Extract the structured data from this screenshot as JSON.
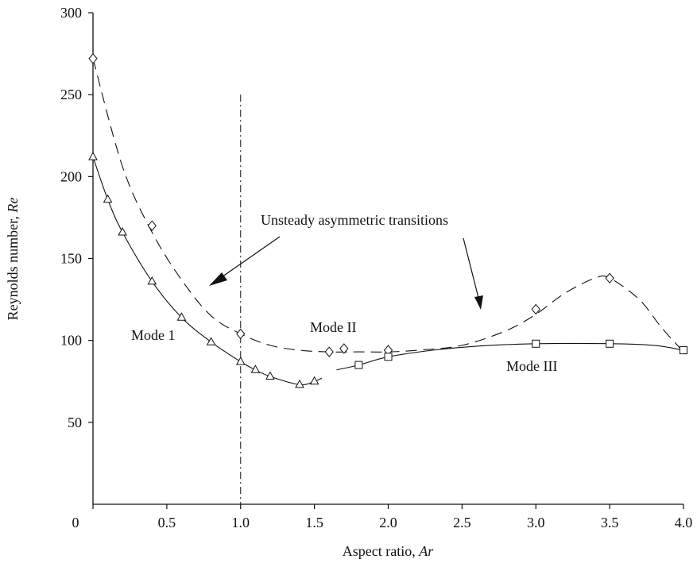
{
  "chart_data": {
    "type": "line",
    "xlabel": "Aspect ratio, ",
    "xlabel_italic": "Ar",
    "ylabel": "Reynolds number, ",
    "ylabel_italic": "Re",
    "xlim": [
      0,
      4.0
    ],
    "ylim": [
      0,
      300
    ],
    "x_ticks": [
      {
        "value": 0,
        "label": "0"
      },
      {
        "value": 0.5,
        "label": "0.5"
      },
      {
        "value": 1.0,
        "label": "1.0"
      },
      {
        "value": 1.5,
        "label": "1.5"
      },
      {
        "value": 2.0,
        "label": "2.0"
      },
      {
        "value": 2.5,
        "label": "2.5"
      },
      {
        "value": 3.0,
        "label": "3.0"
      },
      {
        "value": 3.5,
        "label": "3.5"
      },
      {
        "value": 4.0,
        "label": "4.0"
      }
    ],
    "y_ticks": [
      {
        "value": 50,
        "label": "50"
      },
      {
        "value": 100,
        "label": "100"
      },
      {
        "value": 150,
        "label": "150"
      },
      {
        "value": 200,
        "label": "200"
      },
      {
        "value": 250,
        "label": "250"
      },
      {
        "value": 300,
        "label": "300"
      }
    ],
    "grid": false,
    "reference_line_x": 1.0,
    "reference_line_top": 250,
    "series": [
      {
        "marker": "triangle",
        "line": "solid",
        "points": [
          [
            0,
            212
          ],
          [
            0.1,
            186
          ],
          [
            0.2,
            166
          ],
          [
            0.4,
            136
          ],
          [
            0.6,
            114
          ],
          [
            0.8,
            99
          ],
          [
            1.0,
            87
          ],
          [
            1.1,
            82
          ],
          [
            1.2,
            78
          ],
          [
            1.4,
            73
          ],
          [
            1.5,
            75
          ]
        ],
        "curve": [
          [
            0,
            212
          ],
          [
            0.1,
            186
          ],
          [
            0.2,
            166
          ],
          [
            0.4,
            136
          ],
          [
            0.6,
            114
          ],
          [
            0.8,
            99
          ],
          [
            1.0,
            87
          ],
          [
            1.1,
            82
          ],
          [
            1.2,
            78
          ],
          [
            1.4,
            73
          ],
          [
            1.5,
            75
          ],
          [
            1.55,
            77
          ]
        ]
      },
      {
        "marker": "diamond",
        "line": "dashed",
        "points": [
          [
            0,
            272
          ],
          [
            0.4,
            170
          ],
          [
            1.0,
            104
          ],
          [
            1.6,
            93
          ],
          [
            1.7,
            95
          ],
          [
            2.0,
            94
          ],
          [
            3.0,
            119
          ],
          [
            3.5,
            138
          ]
        ],
        "curve": [
          [
            0,
            272
          ],
          [
            0.2,
            206
          ],
          [
            0.4,
            166
          ],
          [
            0.6,
            137
          ],
          [
            0.8,
            115
          ],
          [
            1.0,
            104
          ],
          [
            1.2,
            97
          ],
          [
            1.4,
            94
          ],
          [
            1.6,
            93
          ],
          [
            1.8,
            93
          ],
          [
            2.0,
            93
          ],
          [
            2.2,
            94
          ],
          [
            2.5,
            97
          ],
          [
            2.8,
            106
          ],
          [
            3.0,
            116
          ],
          [
            3.2,
            129
          ],
          [
            3.4,
            138
          ],
          [
            3.5,
            138
          ],
          [
            3.7,
            125
          ],
          [
            3.85,
            108
          ],
          [
            4.0,
            93
          ]
        ]
      },
      {
        "marker": "square",
        "line": "solid",
        "points": [
          [
            1.8,
            85
          ],
          [
            2.0,
            90
          ],
          [
            3.0,
            98
          ],
          [
            3.5,
            98
          ],
          [
            4.0,
            94
          ]
        ],
        "curve": [
          [
            1.65,
            82
          ],
          [
            1.8,
            85
          ],
          [
            2.0,
            90
          ],
          [
            2.3,
            94
          ],
          [
            2.6,
            96.5
          ],
          [
            3.0,
            98
          ],
          [
            3.5,
            98
          ],
          [
            3.8,
            97
          ],
          [
            4.0,
            94
          ]
        ]
      }
    ],
    "annotations": {
      "mode1": "Mode 1",
      "mode2": "Mode II",
      "mode3": "Mode III",
      "unsteady": "Unsteady asymmetric transitions"
    }
  }
}
